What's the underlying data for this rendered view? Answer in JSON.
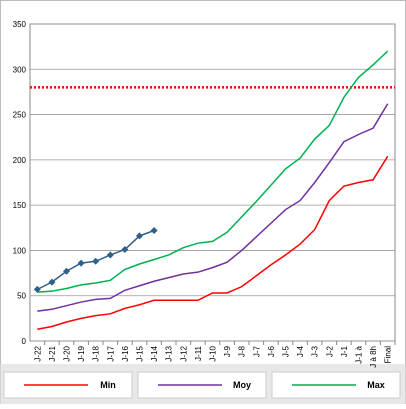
{
  "chart_data": {
    "type": "line",
    "categories": [
      "J-22",
      "J-21",
      "J-20",
      "J-19",
      "J-18",
      "J-17",
      "J-16",
      "J-15",
      "J-14",
      "J-13",
      "J-12",
      "J-11",
      "J-10",
      "J-9",
      "J-8",
      "J-7",
      "J-6",
      "J-5",
      "J-4",
      "J-3",
      "J-2",
      "J-1",
      "J-1 à",
      "J à 8h",
      "Final"
    ],
    "series": [
      {
        "name": "Min",
        "color": "#ff0000",
        "values": [
          13,
          16,
          21,
          25,
          28,
          30,
          36,
          40,
          45,
          45,
          45,
          45,
          53,
          53,
          60,
          72,
          84,
          95,
          107,
          123,
          155,
          171,
          175,
          178,
          204
        ]
      },
      {
        "name": "Moy",
        "color": "#7030a0",
        "values": [
          33,
          35,
          39,
          43,
          46,
          47,
          56,
          61,
          66,
          70,
          74,
          76,
          81,
          87,
          100,
          115,
          130,
          145,
          155,
          175,
          197,
          220,
          228,
          235,
          262
        ]
      },
      {
        "name": "Max",
        "color": "#00b050",
        "values": [
          54,
          55,
          58,
          62,
          64,
          67,
          79,
          85,
          90,
          95,
          103,
          108,
          110,
          120,
          137,
          154,
          172,
          190,
          202,
          223,
          238,
          269,
          291,
          305,
          320
        ]
      },
      {
        "color": "#2f5f8a",
        "marker": "diamond",
        "values": [
          57,
          65,
          77,
          86,
          88,
          95,
          101,
          116,
          122,
          null,
          null,
          null,
          null,
          null,
          null,
          null,
          null,
          null,
          null,
          null,
          null,
          null,
          null,
          null,
          null
        ]
      }
    ],
    "reference_line": {
      "value": 280,
      "color": "#ff0000",
      "style": "dotted"
    },
    "ylim": [
      0,
      350
    ],
    "yticks": [
      0,
      50,
      100,
      150,
      200,
      250,
      300,
      350
    ],
    "grid": true,
    "legend": "bottom"
  }
}
